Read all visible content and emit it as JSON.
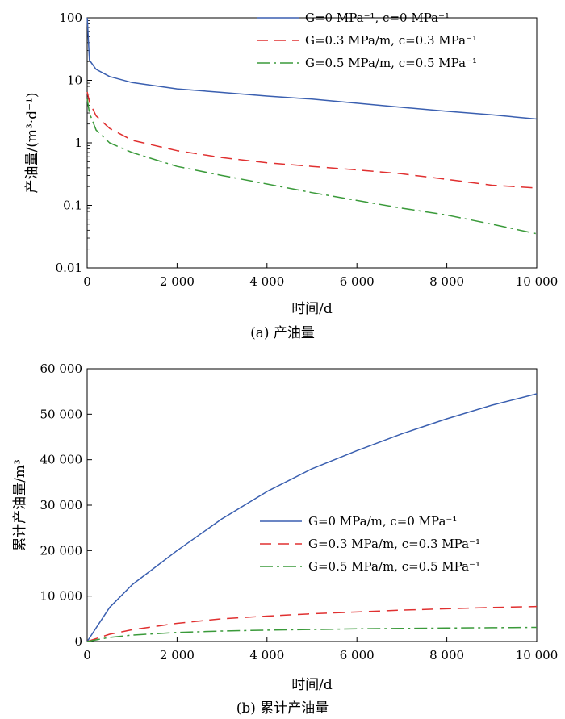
{
  "chart_data": [
    {
      "type": "line",
      "caption": "(a) 产油量",
      "xlabel": "时间/d",
      "ylabel": "产油量/(m³·d⁻¹)",
      "xlim": [
        0,
        10000
      ],
      "ylim": [
        0.01,
        100
      ],
      "yscale": "log",
      "xticks": [
        "0",
        "2 000",
        "4 000",
        "6 000",
        "8 000",
        "10 000"
      ],
      "yticks": [
        "0.01",
        "0.1",
        "1",
        "10",
        "100"
      ],
      "legend_position": "top-right",
      "series": [
        {
          "name": "G=0 MPa⁻¹, c=0 MPa⁻¹",
          "color": "#3a5fb0",
          "dash": "solid",
          "x": [
            1,
            50,
            200,
            500,
            1000,
            2000,
            3000,
            4000,
            5000,
            6000,
            7000,
            8000,
            9000,
            10000
          ],
          "y": [
            100,
            21,
            15,
            11.5,
            9.2,
            7.3,
            6.4,
            5.6,
            5.0,
            4.3,
            3.7,
            3.2,
            2.8,
            2.4
          ]
        },
        {
          "name": "G=0.3 MPa/m, c=0.3 MPa⁻¹",
          "color": "#e03030",
          "dash": "dashed",
          "x": [
            1,
            50,
            200,
            500,
            1000,
            2000,
            3000,
            4000,
            5000,
            6000,
            7000,
            8000,
            9000,
            10000
          ],
          "y": [
            6.5,
            4.5,
            2.7,
            1.7,
            1.1,
            0.75,
            0.58,
            0.48,
            0.42,
            0.37,
            0.32,
            0.26,
            0.21,
            0.19
          ]
        },
        {
          "name": "G=0.5 MPa/m, c=0.5 MPa⁻¹",
          "color": "#3a9a3a",
          "dash": "dashdot",
          "x": [
            1,
            50,
            200,
            500,
            1000,
            2000,
            3000,
            4000,
            5000,
            6000,
            7000,
            8000,
            9000,
            10000
          ],
          "y": [
            5,
            3.0,
            1.6,
            1.0,
            0.7,
            0.42,
            0.3,
            0.22,
            0.16,
            0.12,
            0.09,
            0.07,
            0.05,
            0.035
          ]
        }
      ]
    },
    {
      "type": "line",
      "caption": "(b) 累计产油量",
      "xlabel": "时间/d",
      "ylabel": "累计产油量/m³",
      "xlim": [
        0,
        10000
      ],
      "ylim": [
        0,
        60000
      ],
      "yscale": "linear",
      "xticks": [
        "0",
        "2 000",
        "4 000",
        "6 000",
        "8 000",
        "10 000"
      ],
      "yticks": [
        "0",
        "10 000",
        "20 000",
        "30 000",
        "40 000",
        "50 000",
        "60 000"
      ],
      "legend_position": "bottom-right",
      "series": [
        {
          "name": "G=0 MPa/m, c=0 MPa⁻¹",
          "color": "#3a5fb0",
          "dash": "solid",
          "x": [
            0,
            500,
            1000,
            2000,
            3000,
            4000,
            5000,
            6000,
            7000,
            8000,
            9000,
            10000
          ],
          "y": [
            0,
            7500,
            12500,
            20000,
            27000,
            33000,
            38000,
            42000,
            45700,
            49000,
            52000,
            54500
          ]
        },
        {
          "name": "G=0.3 MPa/m, c=0.3 MPa⁻¹",
          "color": "#e03030",
          "dash": "dashed",
          "x": [
            0,
            500,
            1000,
            2000,
            3000,
            4000,
            5000,
            6000,
            7000,
            8000,
            9000,
            10000
          ],
          "y": [
            0,
            1600,
            2600,
            4000,
            5000,
            5600,
            6100,
            6500,
            6900,
            7200,
            7500,
            7700
          ]
        },
        {
          "name": "G=0.5 MPa/m, c=0.5 MPa⁻¹",
          "color": "#3a9a3a",
          "dash": "dashdot",
          "x": [
            0,
            500,
            1000,
            2000,
            3000,
            4000,
            5000,
            6000,
            7000,
            8000,
            9000,
            10000
          ],
          "y": [
            0,
            900,
            1400,
            2000,
            2300,
            2500,
            2650,
            2780,
            2880,
            2960,
            3030,
            3100
          ]
        }
      ]
    }
  ]
}
